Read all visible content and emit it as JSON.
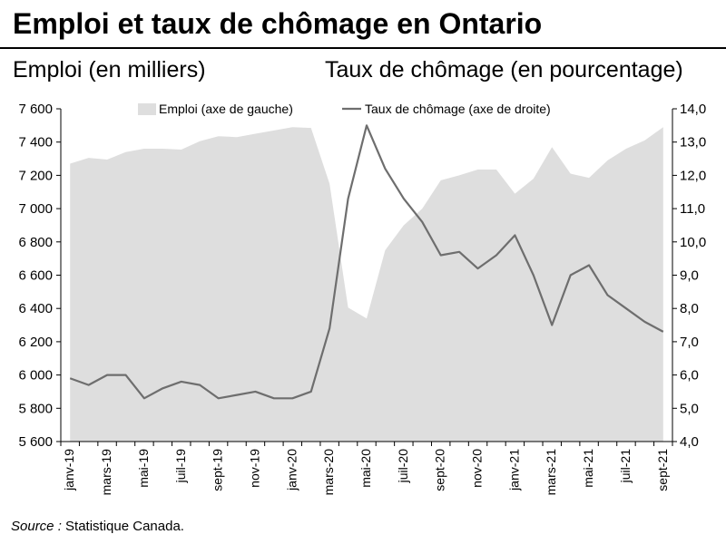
{
  "title": "Emploi et taux de chômage en Ontario",
  "left_axis_label": "Emploi (en milliers)",
  "right_axis_label": "Taux de chômage (en pourcentage)",
  "source": {
    "prefix": "Source :",
    "text": " Statistique Canada."
  },
  "colors": {
    "area": "#dedede",
    "line": "#6e6e6e",
    "axis": "#000000"
  },
  "chart_data": {
    "type": "area",
    "x": [
      "janv-19",
      "févr-19",
      "mars-19",
      "avr-19",
      "mai-19",
      "juin-19",
      "juil-19",
      "août-19",
      "sept-19",
      "oct-19",
      "nov-19",
      "déc-19",
      "janv-20",
      "févr-20",
      "mars-20",
      "avr-20",
      "mai-20",
      "juin-20",
      "juil-20",
      "août-20",
      "sept-20",
      "oct-20",
      "nov-20",
      "déc-20",
      "janv-21",
      "févr-21",
      "mars-21",
      "avr-21",
      "mai-21",
      "juin-21",
      "juil-21",
      "août-21",
      "sept-21"
    ],
    "x_tick_labels": [
      "janv-19",
      "mars-19",
      "mai-19",
      "juil-19",
      "sept-19",
      "nov-19",
      "janv-20",
      "mars-20",
      "mai-20",
      "juil-20",
      "sept-20",
      "nov-20",
      "janv-21",
      "mars-21",
      "mai-21",
      "juil-21",
      "sept-21"
    ],
    "series": [
      {
        "name": "Emploi (axe de gauche)",
        "axis": "left",
        "kind": "area",
        "values": [
          7270,
          7305,
          7295,
          7340,
          7360,
          7360,
          7355,
          7405,
          7435,
          7430,
          7450,
          7470,
          7490,
          7485,
          7150,
          6405,
          6340,
          6750,
          6900,
          7000,
          7170,
          7200,
          7235,
          7235,
          7090,
          7180,
          7370,
          7210,
          7185,
          7290,
          7360,
          7410,
          7490
        ]
      },
      {
        "name": "Taux de chômage (axe de droite)",
        "axis": "right",
        "kind": "line",
        "values": [
          5.9,
          5.7,
          6.0,
          6.0,
          5.3,
          5.6,
          5.8,
          5.7,
          5.3,
          5.4,
          5.5,
          5.3,
          5.3,
          5.5,
          7.4,
          11.3,
          13.5,
          12.2,
          11.3,
          10.6,
          9.6,
          9.7,
          9.2,
          9.6,
          10.2,
          9.0,
          7.5,
          9.0,
          9.3,
          8.4,
          8.0,
          7.6,
          7.3
        ]
      }
    ],
    "left_axis": {
      "ylim": [
        5600,
        7600
      ],
      "ticks": [
        5600,
        5800,
        6000,
        6200,
        6400,
        6600,
        6800,
        7000,
        7200,
        7400,
        7600
      ],
      "tick_labels": [
        "5 600",
        "5 800",
        "6 000",
        "6 200",
        "6 400",
        "6 600",
        "6 800",
        "7 000",
        "7 200",
        "7 400",
        "7 600"
      ]
    },
    "right_axis": {
      "ylim": [
        4.0,
        14.0
      ],
      "ticks": [
        4,
        5,
        6,
        7,
        8,
        9,
        10,
        11,
        12,
        13,
        14
      ],
      "tick_labels": [
        "4,0",
        "5,0",
        "6,0",
        "7,0",
        "8,0",
        "9,0",
        "10,0",
        "11,0",
        "12,0",
        "13,0",
        "14,0"
      ]
    },
    "grid": false,
    "legend_position": "top"
  }
}
